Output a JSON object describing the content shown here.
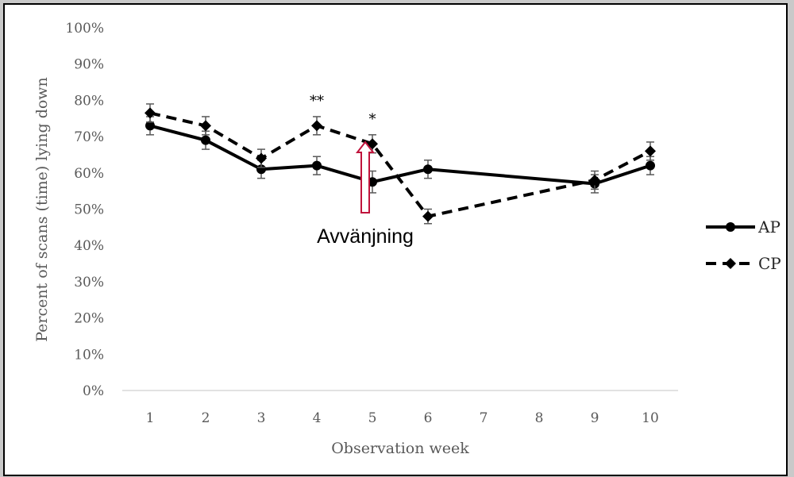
{
  "chart_data": {
    "type": "line",
    "title": "",
    "xlabel": "Observation week",
    "ylabel": "Percent of scans (time) lying down",
    "categories": [
      "1",
      "2",
      "3",
      "4",
      "5",
      "6",
      "7",
      "8",
      "9",
      "10"
    ],
    "yticks": [
      "0%",
      "10%",
      "20%",
      "30%",
      "40%",
      "50%",
      "60%",
      "70%",
      "80%",
      "90%",
      "100%"
    ],
    "ylim": [
      0,
      100
    ],
    "grid": false,
    "legend_position": "right",
    "series": [
      {
        "name": "AP",
        "style": "solid",
        "marker": "circle",
        "x": [
          1,
          2,
          3,
          4,
          5,
          6,
          9,
          10
        ],
        "values": [
          73,
          69,
          61,
          62,
          57.5,
          61,
          57,
          62
        ],
        "errors": [
          2.5,
          2.5,
          2.5,
          2.5,
          3,
          2.5,
          2.5,
          2.5
        ]
      },
      {
        "name": "CP",
        "style": "dashed",
        "marker": "diamond",
        "x": [
          1,
          2,
          3,
          4,
          5,
          6,
          9,
          10
        ],
        "values": [
          76.5,
          73,
          64,
          73,
          68,
          48,
          58,
          66
        ],
        "errors": [
          2.5,
          2.5,
          2.5,
          2.5,
          2.5,
          2,
          2.5,
          2.5
        ]
      }
    ],
    "significance": [
      {
        "x": 4,
        "text": "**"
      },
      {
        "x": 5,
        "text": "*"
      }
    ],
    "annotation": {
      "text": "Avvänjning",
      "x": 5,
      "arrow_color": "#c0143c"
    }
  },
  "colors": {
    "line": "#000000",
    "text": "#595959",
    "arrow": "#c0143c",
    "axis": "#d9d9d9"
  }
}
